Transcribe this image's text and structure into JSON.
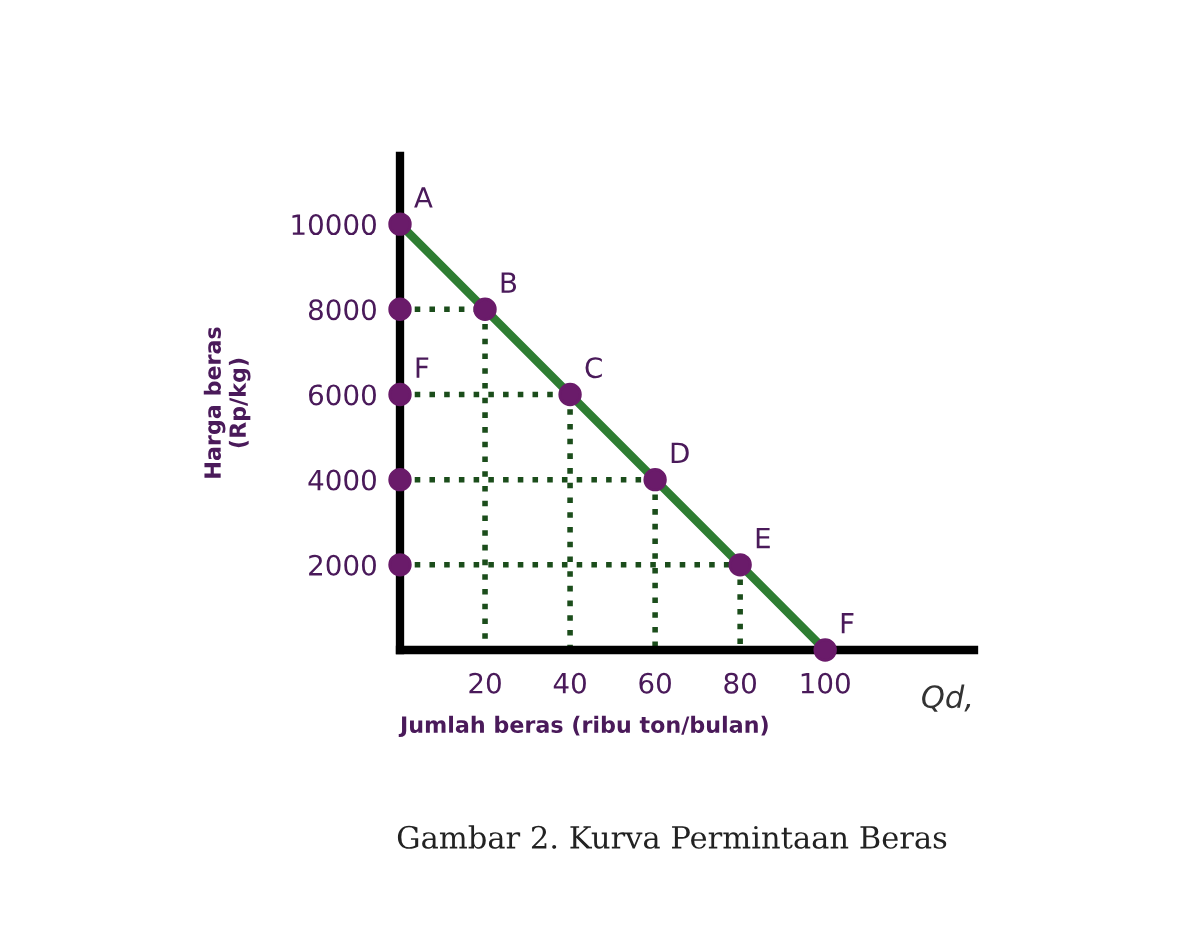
{
  "chart_data": {
    "type": "line",
    "xlabel": "Jumlah beras (ribu ton/bulan)",
    "ylabel": "Harga beras\n(Rp/kg)",
    "xlim": [
      0,
      135
    ],
    "ylim": [
      0,
      11600
    ],
    "xticks": [
      20,
      40,
      60,
      80,
      100
    ],
    "yticks": [
      2000,
      4000,
      6000,
      8000,
      10000
    ],
    "grid": false,
    "legend": false,
    "series": [
      {
        "color": "#2e7d32",
        "x": [
          0,
          100
        ],
        "values": [
          10000,
          0
        ],
        "marker": "none",
        "line_style": "solid"
      },
      {
        "type": "line",
        "color": "#1b4d1b",
        "x": [
          0,
          20
        ],
        "values": [
          8000,
          8000
        ],
        "marker": "none",
        "line_style": "dotted"
      },
      {
        "type": "line",
        "color": "#1b4d1b",
        "x": [
          0,
          40
        ],
        "values": [
          6000,
          6000
        ],
        "marker": "none",
        "line_style": "dotted"
      },
      {
        "type": "line",
        "color": "#1b4d1b",
        "x": [
          0,
          60
        ],
        "values": [
          4000,
          4000
        ],
        "marker": "none",
        "line_style": "dotted"
      },
      {
        "type": "line",
        "color": "#1b4d1b",
        "x": [
          0,
          80
        ],
        "values": [
          2000,
          2000
        ],
        "marker": "none",
        "line_style": "dotted"
      },
      {
        "type": "line",
        "color": "#1b4d1b",
        "x": [
          20,
          20
        ],
        "values": [
          8000,
          0
        ],
        "marker": "none",
        "line_style": "dotted"
      },
      {
        "type": "line",
        "color": "#1b4d1b",
        "x": [
          40,
          40
        ],
        "values": [
          6000,
          0
        ],
        "marker": "none",
        "line_style": "dotted"
      },
      {
        "type": "line",
        "color": "#1b4d1b",
        "x": [
          60,
          60
        ],
        "values": [
          4000,
          0
        ],
        "marker": "none",
        "line_style": "dotted"
      },
      {
        "type": "line",
        "color": "#1b4d1b",
        "x": [
          80,
          80
        ],
        "values": [
          2000,
          0
        ],
        "marker": "none",
        "line_style": "dotted"
      },
      {
        "type": "scatter",
        "color": "#6a1b6a",
        "x": [
          0,
          20,
          40,
          60,
          80,
          100,
          0,
          0,
          0,
          0
        ],
        "values": [
          10000,
          8000,
          6000,
          4000,
          2000,
          0,
          8000,
          6000,
          4000,
          2000
        ],
        "marker": "circle"
      }
    ],
    "annotations": [
      {
        "text": "A",
        "x": 0,
        "y": 10000
      },
      {
        "text": "B",
        "x": 20,
        "y": 8000
      },
      {
        "text": "C",
        "x": 40,
        "y": 6000
      },
      {
        "text": "D",
        "x": 60,
        "y": 4000
      },
      {
        "text": "E",
        "x": 80,
        "y": 2000
      },
      {
        "text": "F",
        "x": 100,
        "y": 0
      },
      {
        "text": "F",
        "x": 0,
        "y": 6000
      },
      "Qd,",
      "Gambar 2. Kurva Permintaan Beras"
    ]
  }
}
